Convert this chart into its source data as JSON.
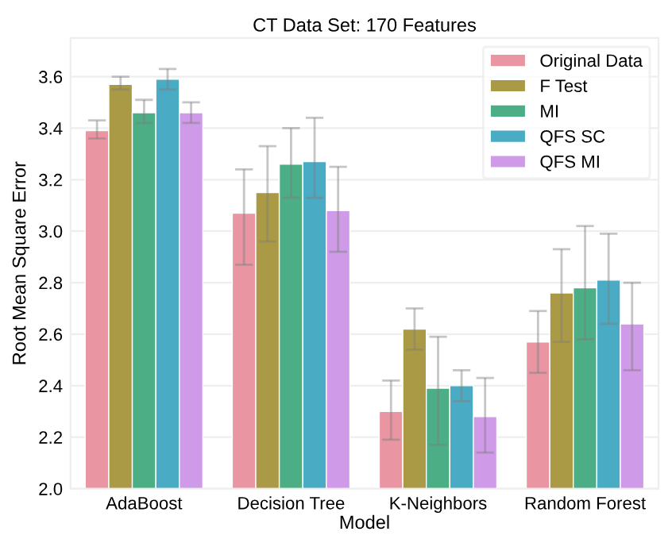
{
  "chart_data": {
    "type": "bar",
    "title": "CT Data Set: 170 Features",
    "xlabel": "Model",
    "ylabel": "Root Mean Square Error",
    "categories": [
      "AdaBoost",
      "Decision Tree",
      "K-Neighbors",
      "Random Forest"
    ],
    "series": [
      {
        "name": "Original Data",
        "color": "#ea95a2",
        "values": [
          3.39,
          3.07,
          2.3,
          2.57
        ],
        "errors": [
          [
            3.36,
            3.43
          ],
          [
            2.87,
            3.24
          ],
          [
            2.19,
            2.42
          ],
          [
            2.45,
            2.69
          ]
        ]
      },
      {
        "name": "F Test",
        "color": "#ab9a45",
        "values": [
          3.57,
          3.15,
          2.62,
          2.76
        ],
        "errors": [
          [
            3.55,
            3.6
          ],
          [
            2.96,
            3.33
          ],
          [
            2.54,
            2.7
          ],
          [
            2.57,
            2.93
          ]
        ]
      },
      {
        "name": "MI",
        "color": "#4bae85",
        "values": [
          3.46,
          3.26,
          2.39,
          2.78
        ],
        "errors": [
          [
            3.42,
            3.51
          ],
          [
            3.13,
            3.4
          ],
          [
            2.17,
            2.59
          ],
          [
            2.58,
            3.02
          ]
        ]
      },
      {
        "name": "QFS SC",
        "color": "#4aabc5",
        "values": [
          3.59,
          3.27,
          2.4,
          2.81
        ],
        "errors": [
          [
            3.55,
            3.63
          ],
          [
            3.13,
            3.44
          ],
          [
            2.34,
            2.46
          ],
          [
            2.64,
            2.99
          ]
        ]
      },
      {
        "name": "QFS MI",
        "color": "#cf9be8",
        "values": [
          3.46,
          3.08,
          2.28,
          2.64
        ],
        "errors": [
          [
            3.42,
            3.5
          ],
          [
            2.92,
            3.25
          ],
          [
            2.14,
            2.43
          ],
          [
            2.46,
            2.8
          ]
        ]
      }
    ],
    "ylim": [
      2.0,
      3.75
    ],
    "yticks": [
      {
        "value": 2.0,
        "label": "2.0"
      },
      {
        "value": 2.2,
        "label": "2.2"
      },
      {
        "value": 2.4,
        "label": "2.4"
      },
      {
        "value": 2.6,
        "label": "2.6"
      },
      {
        "value": 2.8,
        "label": "2.8"
      },
      {
        "value": 3.0,
        "label": "3.0"
      },
      {
        "value": 3.2,
        "label": "3.2"
      },
      {
        "value": 3.4,
        "label": "3.4"
      },
      {
        "value": 3.6,
        "label": "3.6"
      }
    ],
    "grid": "y",
    "legend": "top right"
  }
}
